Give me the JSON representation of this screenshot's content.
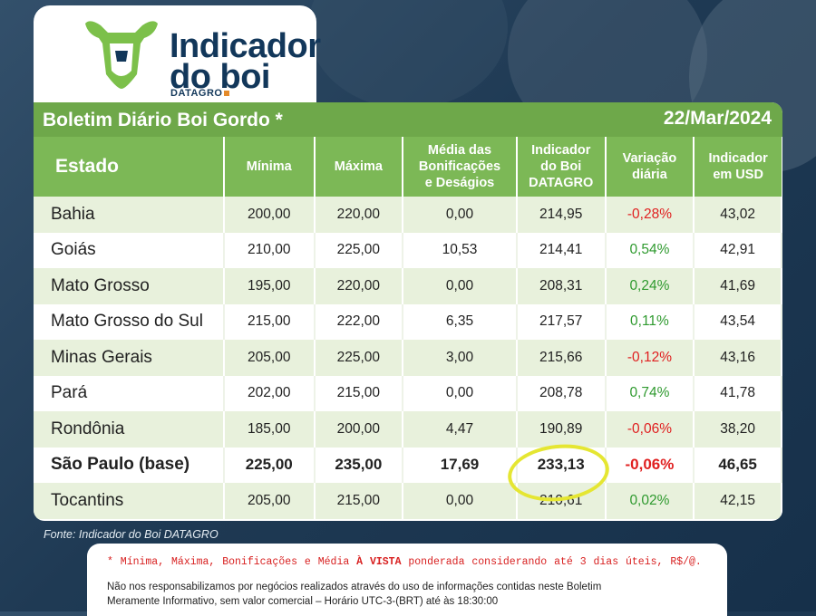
{
  "logo": {
    "line1": "Indicador",
    "line2": "do boi",
    "sub": "DATAGRO"
  },
  "title": "Boletim Diário Boi Gordo *",
  "date": "22/Mar/2024",
  "headers": {
    "estado": "Estado",
    "minima": "Mínima",
    "maxima": "Máxima",
    "media": [
      "Média das",
      "Bonificações",
      "e Deságios"
    ],
    "indicador": [
      "Indicador",
      "do Boi",
      "DATAGRO"
    ],
    "variacao": [
      "Variação",
      "diária"
    ],
    "usd": [
      "Indicador",
      "em USD"
    ]
  },
  "rows": [
    {
      "estado": "Bahia",
      "min": "200,00",
      "max": "220,00",
      "media": "0,00",
      "ind": "214,95",
      "var": "-0,28%",
      "usd": "43,02"
    },
    {
      "estado": "Goiás",
      "min": "210,00",
      "max": "225,00",
      "media": "10,53",
      "ind": "214,41",
      "var": "0,54%",
      "usd": "42,91"
    },
    {
      "estado": "Mato Grosso",
      "min": "195,00",
      "max": "220,00",
      "media": "0,00",
      "ind": "208,31",
      "var": "0,24%",
      "usd": "41,69"
    },
    {
      "estado": "Mato Grosso do Sul",
      "min": "215,00",
      "max": "222,00",
      "media": "6,35",
      "ind": "217,57",
      "var": "0,11%",
      "usd": "43,54"
    },
    {
      "estado": "Minas Gerais",
      "min": "205,00",
      "max": "225,00",
      "media": "3,00",
      "ind": "215,66",
      "var": "-0,12%",
      "usd": "43,16"
    },
    {
      "estado": "Pará",
      "min": "202,00",
      "max": "215,00",
      "media": "0,00",
      "ind": "208,78",
      "var": "0,74%",
      "usd": "41,78"
    },
    {
      "estado": "Rondônia",
      "min": "185,00",
      "max": "200,00",
      "media": "4,47",
      "ind": "190,89",
      "var": "-0,06%",
      "usd": "38,20"
    },
    {
      "estado": "São Paulo (base)",
      "min": "225,00",
      "max": "235,00",
      "media": "17,69",
      "ind": "233,13",
      "var": "-0,06%",
      "usd": "46,65"
    },
    {
      "estado": "Tocantins",
      "min": "205,00",
      "max": "215,00",
      "media": "0,00",
      "ind": "210,61",
      "var": "0,02%",
      "usd": "42,15"
    }
  ],
  "source": "Fonte: Indicador do Boi DATAGRO",
  "note1_a": "* Mínima, Máxima, Bonificações e Média ",
  "note1_b": "À VISTA",
  "note1_c": " ponderada considerando até 3 dias úteis, R$/@.",
  "note2_line1": "Não nos responsabilizamos por negócios realizados através do uso de informações contidas neste Boletim",
  "note2_line2": "Meramente Informativo, sem valor comercial – Horário UTC-3-(BRT) até às 18:30:00",
  "colors": {
    "green_header": "#7cb856",
    "title_green": "#6ea84a",
    "negative": "#e02020",
    "positive": "#2f9a2f",
    "highlight": "#e5e632"
  }
}
